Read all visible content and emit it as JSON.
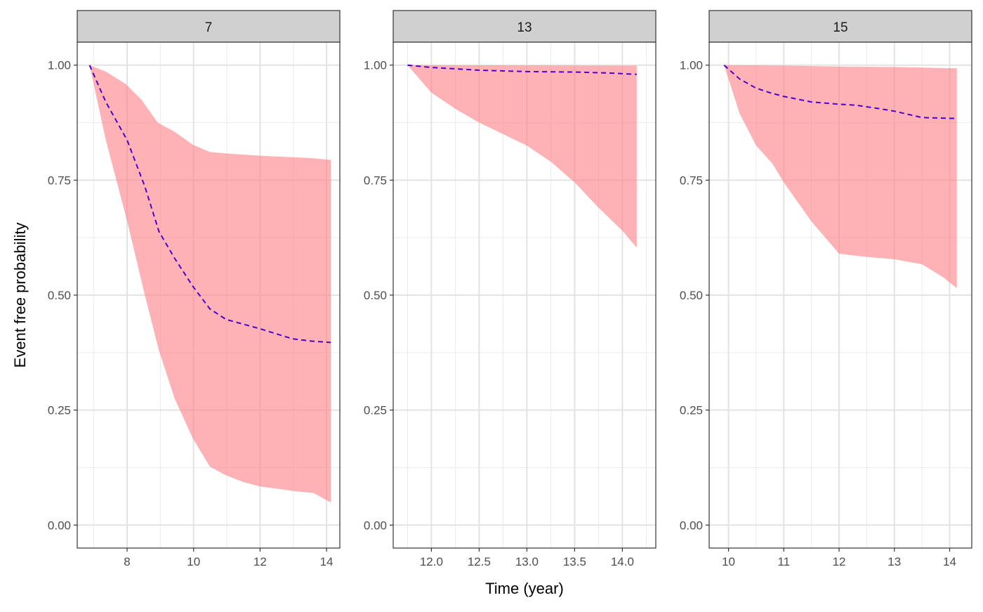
{
  "chart_data": {
    "type": "area",
    "ylabel": "Event free probability",
    "xlabel": "Time (year)",
    "y_ticks": [
      "0.00",
      "0.25",
      "0.50",
      "0.75",
      "1.00"
    ],
    "y_tick_values": [
      0,
      0.25,
      0.5,
      0.75,
      1.0
    ],
    "ylim": [
      -0.05,
      1.05
    ],
    "grid": true,
    "colors": {
      "ribbon": "#ff7f84",
      "line": "#4b00c8",
      "strip": "#d0d0d0"
    },
    "panels": [
      {
        "label": "7",
        "xlim": [
          6.5,
          14.4
        ],
        "x_ticks": [
          "8",
          "10",
          "12",
          "14"
        ],
        "x_tick_values": [
          8,
          10,
          12,
          14
        ],
        "mean": {
          "x": [
            6.87,
            7.36,
            8.0,
            8.53,
            8.96,
            9.43,
            9.98,
            10.49,
            10.98,
            11.99,
            12.97,
            13.55,
            14.13
          ],
          "y": [
            1.0,
            0.92,
            0.837,
            0.737,
            0.638,
            0.58,
            0.519,
            0.47,
            0.447,
            0.427,
            0.405,
            0.4,
            0.397
          ]
        },
        "upper": {
          "x": [
            6.87,
            7.36,
            7.96,
            8.43,
            8.92,
            9.43,
            9.98,
            10.49,
            10.98,
            11.99,
            13.55,
            14.13
          ],
          "y": [
            1.0,
            0.986,
            0.959,
            0.925,
            0.875,
            0.855,
            0.827,
            0.811,
            0.808,
            0.803,
            0.798,
            0.794
          ]
        },
        "lower": {
          "x": [
            6.87,
            7.36,
            8.0,
            8.53,
            8.96,
            9.43,
            9.98,
            10.49,
            10.98,
            11.52,
            11.99,
            13.12,
            13.6,
            14.13
          ],
          "y": [
            1.0,
            0.837,
            0.661,
            0.501,
            0.379,
            0.275,
            0.188,
            0.127,
            0.108,
            0.093,
            0.084,
            0.073,
            0.07,
            0.049
          ]
        }
      },
      {
        "label": "13",
        "xlim": [
          11.6,
          14.35
        ],
        "x_ticks": [
          "12.0",
          "12.5",
          "13.0",
          "13.5",
          "14.0"
        ],
        "x_tick_values": [
          12.0,
          12.5,
          13.0,
          13.5,
          14.0
        ],
        "mean": {
          "x": [
            11.75,
            12.0,
            12.5,
            13.0,
            13.5,
            13.85,
            14.15
          ],
          "y": [
            1.0,
            0.995,
            0.989,
            0.986,
            0.985,
            0.983,
            0.98
          ]
        },
        "upper": {
          "x": [
            11.75,
            14.15
          ],
          "y": [
            1.0,
            0.999
          ]
        },
        "lower": {
          "x": [
            11.75,
            12.0,
            12.25,
            12.5,
            12.75,
            13.0,
            13.25,
            13.5,
            13.75,
            14.0,
            14.15
          ],
          "y": [
            1.0,
            0.94,
            0.905,
            0.875,
            0.85,
            0.825,
            0.79,
            0.745,
            0.69,
            0.64,
            0.603
          ]
        }
      },
      {
        "label": "15",
        "xlim": [
          9.65,
          14.4
        ],
        "x_ticks": [
          "10",
          "11",
          "12",
          "13",
          "14"
        ],
        "x_tick_values": [
          10,
          11,
          12,
          13,
          14
        ],
        "mean": {
          "x": [
            9.92,
            10.2,
            10.5,
            10.75,
            11.0,
            11.5,
            12.0,
            12.3,
            12.75,
            13.0,
            13.5,
            14.13
          ],
          "y": [
            1.0,
            0.97,
            0.95,
            0.94,
            0.932,
            0.92,
            0.915,
            0.913,
            0.905,
            0.9,
            0.886,
            0.884
          ]
        },
        "upper": {
          "x": [
            9.92,
            11.0,
            12.0,
            13.0,
            14.13
          ],
          "y": [
            1.0,
            0.999,
            0.997,
            0.996,
            0.993
          ]
        },
        "lower": {
          "x": [
            9.92,
            10.2,
            10.5,
            10.8,
            11.0,
            11.5,
            12.0,
            12.5,
            13.0,
            13.5,
            13.88,
            14.13
          ],
          "y": [
            1.0,
            0.895,
            0.825,
            0.785,
            0.745,
            0.66,
            0.59,
            0.583,
            0.578,
            0.567,
            0.539,
            0.515
          ]
        }
      }
    ]
  }
}
